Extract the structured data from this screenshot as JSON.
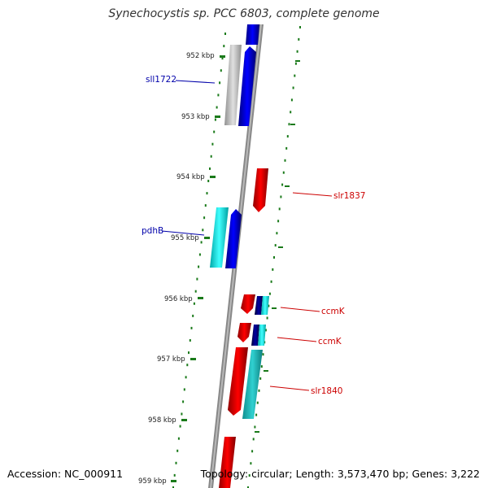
{
  "title": "Synechocystis sp. PCC 6803, complete genome",
  "footer": {
    "accession": "Accession: NC_000911",
    "stats": "Topology: circular; Length: 3,573,470 bp; Genes: 3,222"
  },
  "axis": {
    "ticks": [
      "952 kbp",
      "953 kbp",
      "954 kbp",
      "955 kbp",
      "956 kbp",
      "957 kbp",
      "958 kbp",
      "959 kbp"
    ]
  },
  "colors": {
    "forward_gene": "#0000ee",
    "reverse_gene": "#ee0000",
    "forward_rna": "#c0c0c0",
    "cyan_feature": "#00e0e0",
    "teal_feature": "#1fbfbf",
    "navy_feature": "#000080",
    "label_forward": "#0000aa",
    "label_reverse": "#cc0000",
    "backbone": "#888888",
    "tick": "#1a7a1a"
  },
  "labels": {
    "forward": [
      {
        "name": "sll1722"
      },
      {
        "name": "pdhB"
      }
    ],
    "reverse": [
      {
        "name": "slr1837"
      },
      {
        "name": "ccmK"
      },
      {
        "name": "ccmK"
      },
      {
        "name": "slr1840"
      }
    ]
  }
}
